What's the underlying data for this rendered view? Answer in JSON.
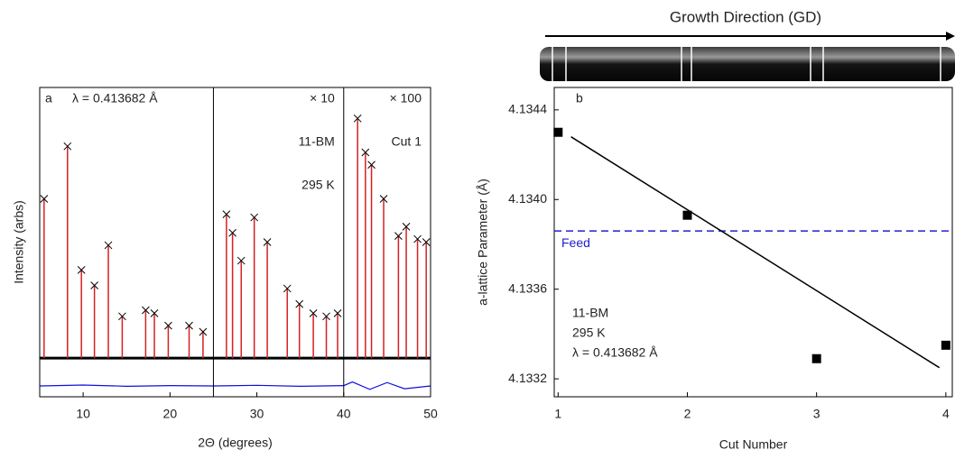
{
  "header": {
    "title": "Growth Direction (GD)"
  },
  "chart_data": [
    {
      "type": "xrd",
      "panel_label": "a",
      "wavelength_label": "λ = 0.413682 Å",
      "x_label": "2Θ (degrees)",
      "y_label": "Intensity (arbs)",
      "xlim": [
        5,
        50
      ],
      "xticks": [
        10,
        20,
        30,
        40,
        50
      ],
      "ylim": [
        0,
        100
      ],
      "dividers": [
        25,
        40
      ],
      "region_labels": [
        "× 10",
        "× 100"
      ],
      "annotations": [
        "11-BM",
        "295 K",
        "Cut 1"
      ],
      "background": 12.5,
      "peaks": {
        "observed_color": "#000000",
        "calculated_color": "#d62020",
        "x": [
          5.5,
          8.2,
          9.8,
          11.3,
          12.9,
          14.5,
          17.2,
          18.2,
          19.8,
          22.2,
          23.8,
          26.5,
          27.2,
          28.2,
          29.7,
          31.2,
          33.5,
          34.9,
          36.5,
          38.0,
          39.3,
          41.6,
          42.5,
          43.2,
          44.6,
          46.3,
          47.2,
          48.5,
          49.5
        ],
        "values": [
          64,
          81,
          41,
          36,
          49,
          26,
          28,
          27,
          23,
          23,
          21,
          59,
          53,
          44,
          58,
          50,
          35,
          30,
          27,
          26,
          27,
          90,
          79,
          75,
          64,
          52,
          55,
          51,
          50
        ]
      },
      "difference": {
        "color": "#1010e0",
        "x": [
          5,
          10,
          15,
          20,
          25,
          30,
          35,
          40,
          41,
          43,
          45,
          47,
          50
        ],
        "values": [
          3.5,
          3.8,
          3.4,
          3.6,
          3.5,
          3.7,
          3.4,
          3.6,
          4.8,
          2.4,
          4.6,
          2.6,
          3.5
        ]
      }
    },
    {
      "type": "scatter",
      "panel_label": "b",
      "x_label": "Cut Number",
      "y_label": "a-lattice Parameter (Å)",
      "xlim": [
        0.97,
        4.05
      ],
      "xticks": [
        1,
        2,
        3,
        4
      ],
      "ylim": [
        4.13312,
        4.1345
      ],
      "yticks": [
        4.1332,
        4.1336,
        {
          "value": 4.134,
          "label": "4.1340"
        },
        4.1344
      ],
      "color": "#000000",
      "x": [
        1,
        2,
        3,
        4
      ],
      "values": [
        4.1343,
        4.13393,
        4.13329,
        4.13335
      ],
      "fit_line": {
        "x": [
          1.1,
          3.95
        ],
        "values": [
          4.13428,
          4.13325
        ],
        "color": "#000000"
      },
      "reference_line": {
        "value": 4.13386,
        "label": "Feed",
        "color": "#2020d0"
      },
      "annotations": [
        "11-BM",
        "295 K",
        "λ = 0.413682 Å"
      ]
    }
  ]
}
